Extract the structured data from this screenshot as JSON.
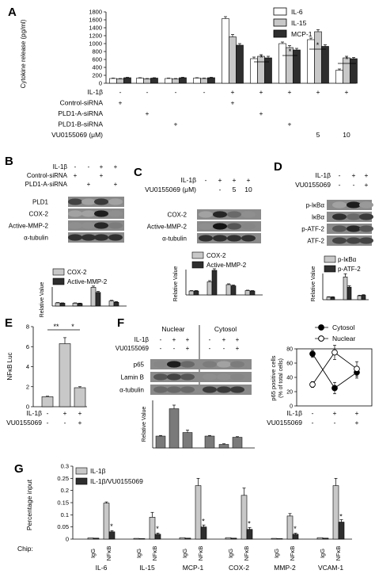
{
  "colors": {
    "white_bar": "#ffffff",
    "light_bar": "#c8c8c8",
    "dark_bar": "#2e2e2e",
    "mid_bar": "#7a7a7a",
    "blot_bg": "#8a8a8a"
  },
  "panels": {
    "A": {
      "label": "A",
      "legend": [
        "IL-6",
        "IL-15",
        "MCP-1"
      ],
      "ylabel": "Cytokine release (pg/ml)",
      "yticks": [
        "0",
        "200",
        "400",
        "600",
        "800",
        "1000",
        "1200",
        "1400",
        "1600",
        "1800"
      ],
      "rows": [
        {
          "label": "IL-1β",
          "marks": [
            "-",
            "-",
            "-",
            "-",
            "+",
            "+",
            "+",
            "+",
            "+"
          ]
        },
        {
          "label": "Control-siRNA",
          "marks": [
            "+",
            "",
            "",
            "",
            "+",
            "",
            "",
            "",
            ""
          ]
        },
        {
          "label": "PLD1-A-siRNA",
          "marks": [
            "",
            "+",
            "",
            "",
            "",
            "+",
            "",
            "",
            ""
          ]
        },
        {
          "label": "PLD1-B-siRNA",
          "marks": [
            "",
            "",
            "+",
            "",
            "",
            "",
            "+",
            "",
            ""
          ]
        },
        {
          "label": "VU0155069 (μM)",
          "marks": [
            "",
            "",
            "",
            "",
            "",
            "",
            "",
            "5",
            "10"
          ]
        }
      ],
      "sig": [
        "*",
        "*",
        "*",
        "*"
      ]
    },
    "B": {
      "label": "B",
      "rows": [
        {
          "label": "IL-1β",
          "marks": [
            "-",
            "-",
            "+",
            "+"
          ]
        },
        {
          "label": "Control-siRNA",
          "marks": [
            "+",
            "",
            "+",
            ""
          ]
        },
        {
          "label": "PLD1-A-siRNA",
          "marks": [
            "",
            "+",
            "",
            "+"
          ]
        }
      ],
      "blots": [
        "PLD1",
        "COX-2",
        "Active-MMP-2",
        "α-tubulin"
      ],
      "legend": [
        "COX-2",
        "Active-MMP-2"
      ],
      "ylabel": "Relative Value"
    },
    "C": {
      "label": "C",
      "rows": [
        {
          "label": "IL-1β",
          "marks": [
            "-",
            "+",
            "+",
            "+"
          ]
        },
        {
          "label": "VU0155069 (μM)",
          "marks": [
            "",
            "-",
            "5",
            "10"
          ]
        }
      ],
      "blots": [
        "COX-2",
        "Active-MMP-2",
        "α-tubulin"
      ],
      "legend": [
        "COX-2",
        "Active-MMP-2"
      ],
      "ylabel": "Relative Value"
    },
    "D": {
      "label": "D",
      "rows": [
        {
          "label": "IL-1β",
          "marks": [
            "-",
            "+",
            "+"
          ]
        },
        {
          "label": "VU0155069",
          "marks": [
            "-",
            "-",
            "+"
          ]
        }
      ],
      "blots": [
        "p-IκBα",
        "IκBα",
        "p-ATF-2",
        "ATF-2"
      ],
      "legend": [
        "p-IκBα",
        "p-ATF-2"
      ],
      "ylabel": "Relative Value"
    },
    "E": {
      "label": "E",
      "ylabel": "NFκB Luc",
      "yticks": [
        "0",
        "2",
        "4",
        "6",
        "8"
      ],
      "rows": [
        {
          "label": "IL-1β",
          "marks": [
            "-",
            "+",
            "+"
          ]
        },
        {
          "label": "VU0155069",
          "marks": [
            "-",
            "-",
            "+"
          ]
        }
      ],
      "sig": [
        "**",
        "*"
      ]
    },
    "F": {
      "label": "F",
      "headers": [
        "Nuclear",
        "Cytosol"
      ],
      "rows": [
        {
          "label": "IL-1β",
          "marks": [
            "-",
            "+",
            "+",
            "-",
            "+",
            "+"
          ]
        },
        {
          "label": "VU0155069",
          "marks": [
            "-",
            "-",
            "+",
            "-",
            "-",
            "+"
          ]
        }
      ],
      "blots": [
        "p65",
        "Lamin B",
        "α-tubulin"
      ],
      "ylabel": "Relative Value",
      "line_legend": [
        "Cytosol",
        "Nuclear"
      ],
      "line_ylabel": "p65 positive cells",
      "line_ylabel2": "(% of total cells)",
      "line_yticks": [
        "0",
        "20",
        "40",
        "60",
        "80"
      ],
      "line_rows": [
        {
          "label": "IL-1β",
          "marks": [
            "-",
            "+",
            "+"
          ]
        },
        {
          "label": "VU0155069",
          "marks": [
            "-",
            "-",
            "+"
          ]
        }
      ]
    },
    "G": {
      "label": "G",
      "legend": [
        "IL-1β",
        "IL-1β/VU0155069"
      ],
      "ylabel": "Percentage input",
      "yticks": [
        "0",
        "0.05",
        "0.1",
        "0.15",
        "0.2",
        "0.25",
        "0.3"
      ],
      "chip_label": "Chip:",
      "chip_items": [
        "IgG",
        "NFκB"
      ],
      "genes": [
        "IL-6",
        "IL-15",
        "MCP-1",
        "COX-2",
        "MMP-2",
        "VCAM-1"
      ],
      "sig": "*"
    }
  },
  "chart_data": [
    {
      "panel": "A",
      "type": "bar",
      "ylabel": "Cytokine release (pg/ml)",
      "ylim": [
        0,
        1800
      ],
      "categories": [
        "1",
        "2",
        "3",
        "4",
        "5",
        "6",
        "7",
        "8",
        "9"
      ],
      "series": [
        {
          "name": "IL-6",
          "color": "#ffffff",
          "values": [
            120,
            130,
            120,
            130,
            1630,
            620,
            1000,
            1100,
            330
          ]
        },
        {
          "name": "IL-15",
          "color": "#c8c8c8",
          "values": [
            110,
            110,
            110,
            120,
            1170,
            680,
            900,
            1300,
            640
          ]
        },
        {
          "name": "MCP-1",
          "color": "#2e2e2e",
          "values": [
            140,
            130,
            140,
            140,
            960,
            640,
            840,
            930,
            620
          ]
        }
      ],
      "errors": [
        [
          10,
          10,
          10,
          10,
          50,
          40,
          40,
          40,
          30
        ],
        [
          10,
          10,
          10,
          10,
          60,
          40,
          50,
          50,
          40
        ],
        [
          10,
          10,
          10,
          10,
          40,
          40,
          40,
          40,
          30
        ]
      ]
    },
    {
      "panel": "B",
      "type": "bar",
      "ylabel": "Relative Value",
      "ylim": [
        0,
        8
      ],
      "categories": [
        "1",
        "2",
        "3",
        "4"
      ],
      "series": [
        {
          "name": "COX-2",
          "color": "#c8c8c8",
          "values": [
            1.0,
            0.9,
            5.9,
            1.6
          ]
        },
        {
          "name": "Active-MMP-2",
          "color": "#2e2e2e",
          "values": [
            0.9,
            0.8,
            4.3,
            1.2
          ]
        }
      ],
      "errors": [
        [
          0.1,
          0.1,
          0.4,
          0.2
        ],
        [
          0.1,
          0.1,
          0.3,
          0.2
        ]
      ]
    },
    {
      "panel": "C",
      "type": "bar",
      "ylabel": "Relative Value",
      "ylim": [
        0,
        8
      ],
      "categories": [
        "1",
        "2",
        "3",
        "4"
      ],
      "series": [
        {
          "name": "COX-2",
          "color": "#c8c8c8",
          "values": [
            1.0,
            3.3,
            2.6,
            1.1
          ]
        },
        {
          "name": "Active-MMP-2",
          "color": "#2e2e2e",
          "values": [
            1.0,
            6.2,
            2.3,
            1.0
          ]
        }
      ],
      "errors": [
        [
          0.1,
          0.3,
          0.2,
          0.1
        ],
        [
          0.1,
          0.4,
          0.2,
          0.1
        ]
      ]
    },
    {
      "panel": "D",
      "type": "bar",
      "ylabel": "Relative Value",
      "ylim": [
        0,
        10
      ],
      "categories": [
        "1",
        "2",
        "3"
      ],
      "series": [
        {
          "name": "p-IκBα",
          "color": "#c8c8c8",
          "values": [
            1.0,
            8.7,
            1.5
          ]
        },
        {
          "name": "p-ATF-2",
          "color": "#2e2e2e",
          "values": [
            1.0,
            4.8,
            1.7
          ]
        }
      ],
      "errors": [
        [
          0.1,
          1.2,
          0.2
        ],
        [
          0.1,
          0.5,
          0.2
        ]
      ]
    },
    {
      "panel": "E",
      "type": "bar",
      "ylabel": "NFκB Luc",
      "ylim": [
        0,
        8
      ],
      "categories": [
        "1",
        "2",
        "3"
      ],
      "series": [
        {
          "name": "",
          "color": "#c8c8c8",
          "values": [
            1.0,
            6.3,
            1.9
          ]
        }
      ],
      "errors": [
        [
          0.05,
          0.6,
          0.1
        ]
      ]
    },
    {
      "panel": "F-bar",
      "type": "bar",
      "ylabel": "Relative Value",
      "ylim": [
        0,
        4
      ],
      "categories": [
        "1",
        "2",
        "3",
        "4",
        "5",
        "6"
      ],
      "series": [
        {
          "name": "",
          "color": "#7a7a7a",
          "values": [
            1.0,
            3.3,
            1.3,
            1.0,
            0.3,
            0.9
          ]
        }
      ],
      "errors": [
        [
          0.05,
          0.3,
          0.2,
          0.05,
          0.05,
          0.05
        ]
      ]
    },
    {
      "panel": "F-line",
      "type": "line",
      "ylabel": "p65 positive cells",
      "ylim": [
        0,
        80
      ],
      "x": [
        "1",
        "2",
        "3"
      ],
      "series": [
        {
          "name": "Cytosol",
          "values": [
            73,
            25,
            47
          ],
          "errors": [
            5,
            8,
            8
          ],
          "marker": "filled"
        },
        {
          "name": "Nuclear",
          "values": [
            30,
            75,
            52
          ],
          "errors": [
            4,
            10,
            10
          ],
          "marker": "open"
        }
      ]
    },
    {
      "panel": "G",
      "type": "bar",
      "ylabel": "Percentage input",
      "ylim": [
        0,
        0.3
      ],
      "categories": [
        "IL-6 IgG",
        "IL-6 NFκB",
        "IL-15 IgG",
        "IL-15 NFκB",
        "MCP-1 IgG",
        "MCP-1 NFκB",
        "COX-2 IgG",
        "COX-2 NFκB",
        "MMP-2 IgG",
        "MMP-2 NFκB",
        "VCAM-1 IgG",
        "VCAM-1 NFκB"
      ],
      "series": [
        {
          "name": "IL-1β",
          "color": "#c8c8c8",
          "values": [
            0.005,
            0.148,
            0.003,
            0.09,
            0.006,
            0.22,
            0.006,
            0.18,
            0.003,
            0.095,
            0.006,
            0.22
          ]
        },
        {
          "name": "IL-1β/VU0155069",
          "color": "#2e2e2e",
          "values": [
            0.004,
            0.03,
            0.002,
            0.02,
            0.004,
            0.05,
            0.004,
            0.04,
            0.002,
            0.02,
            0.004,
            0.07
          ]
        }
      ],
      "errors": [
        [
          0.001,
          0.005,
          0.001,
          0.02,
          0.001,
          0.03,
          0.001,
          0.03,
          0.001,
          0.01,
          0.001,
          0.03
        ],
        [
          0.001,
          0.005,
          0.001,
          0.005,
          0.001,
          0.008,
          0.001,
          0.008,
          0.001,
          0.004,
          0.001,
          0.01
        ]
      ]
    }
  ]
}
